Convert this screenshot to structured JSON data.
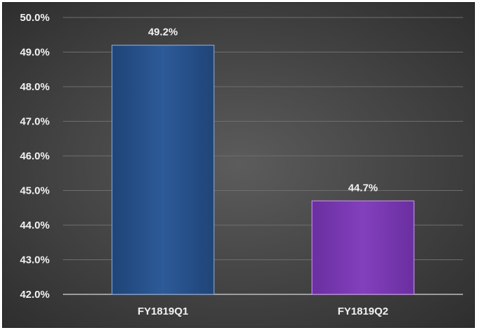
{
  "chart_data": {
    "type": "bar",
    "title": "",
    "xlabel": "",
    "ylabel": "",
    "categories": [
      "FY1819Q1",
      "FY1819Q2"
    ],
    "values": [
      49.2,
      44.7
    ],
    "data_labels": [
      "49.2%",
      "44.7%"
    ],
    "bar_colors": [
      "#2a5592",
      "#7b3bb3"
    ],
    "ylim": [
      42.0,
      50.0
    ],
    "yticks": [
      42.0,
      43.0,
      44.0,
      45.0,
      46.0,
      47.0,
      48.0,
      49.0,
      50.0
    ],
    "ytick_labels": [
      "42.0%",
      "43.0%",
      "44.0%",
      "45.0%",
      "46.0%",
      "47.0%",
      "48.0%",
      "49.0%",
      "50.0%"
    ],
    "grid": true,
    "legend": "none"
  }
}
